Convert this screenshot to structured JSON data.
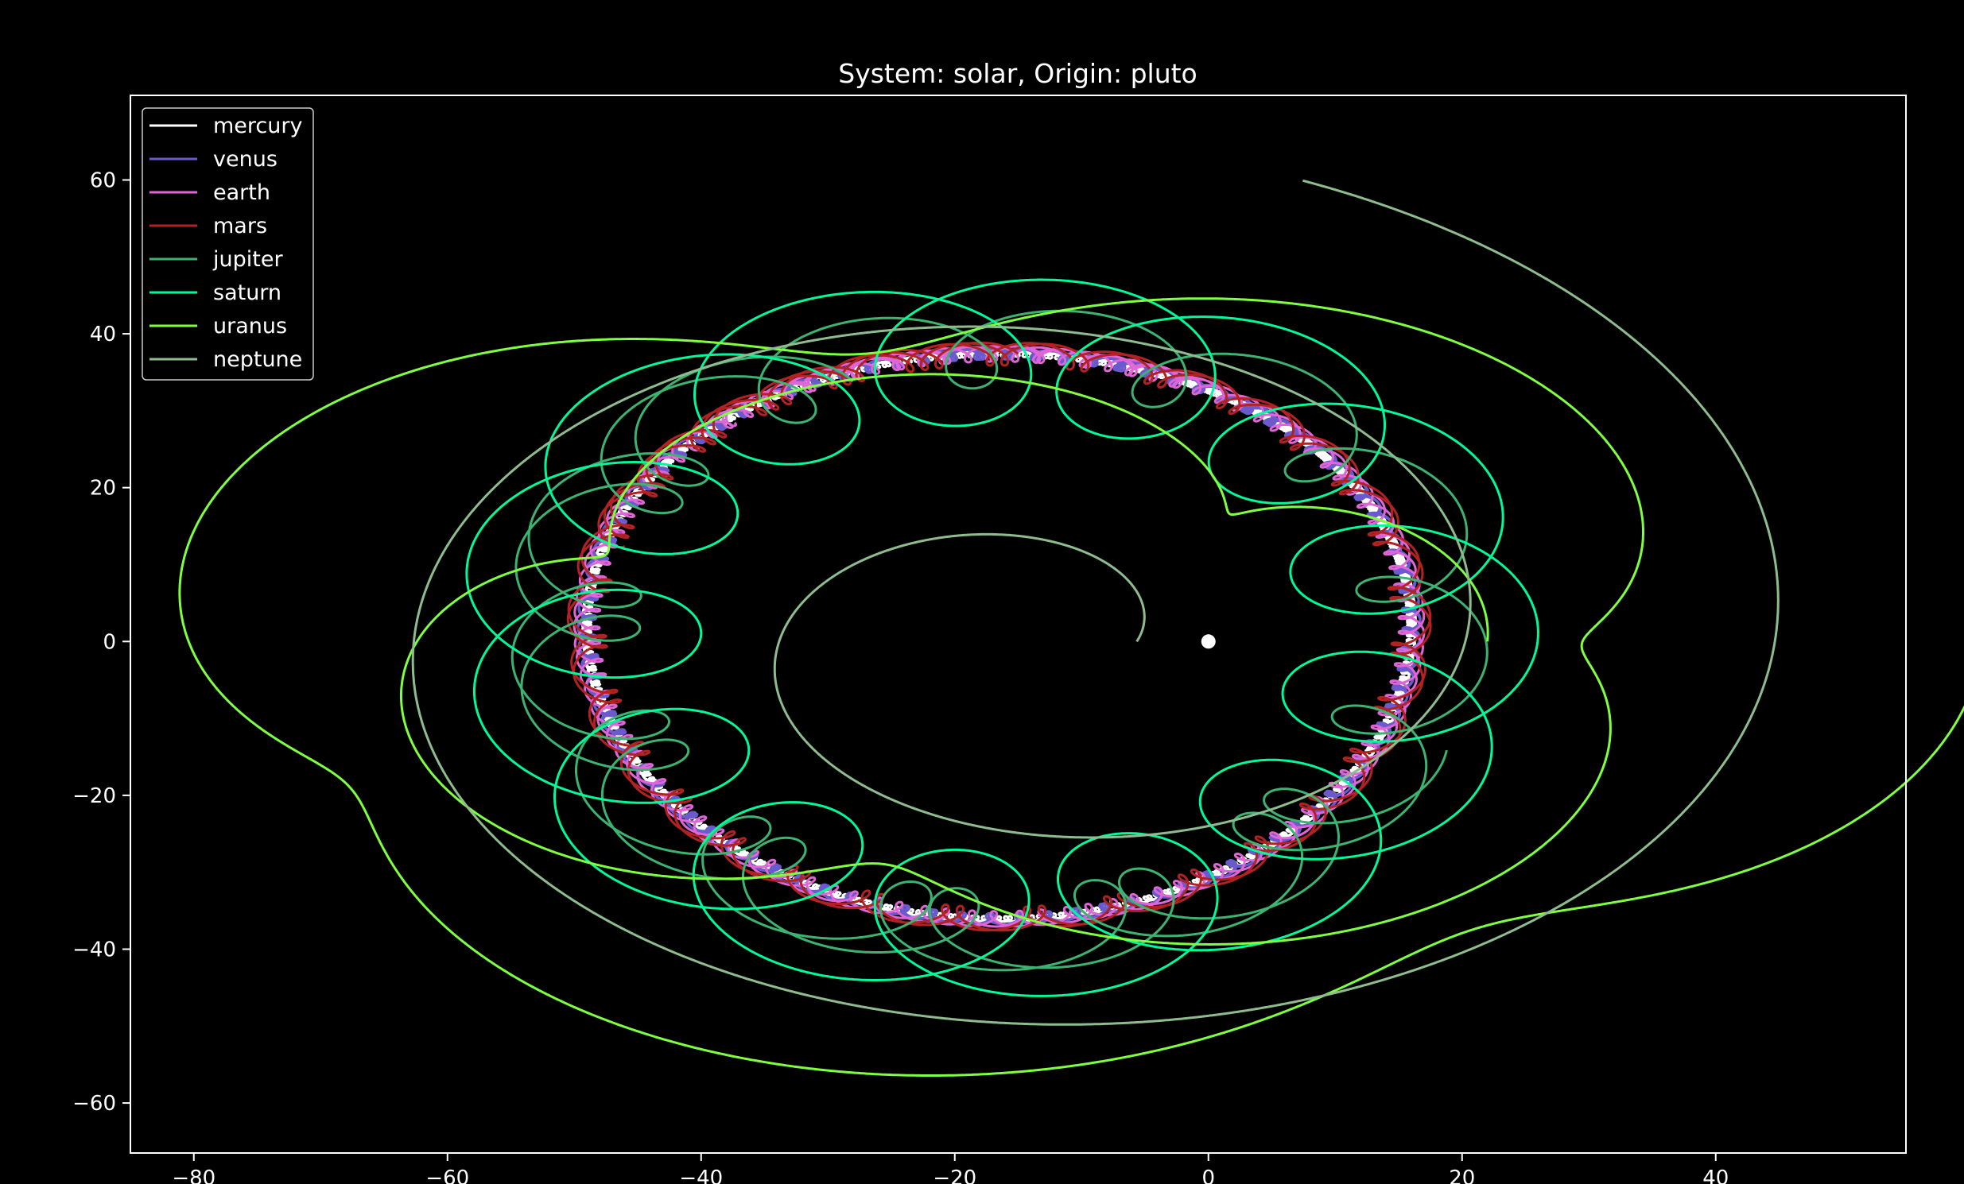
{
  "chart_data": {
    "type": "line",
    "title": "System: solar, Origin: pluto",
    "xlabel": "",
    "ylabel": "",
    "xlim": [
      -85,
      55
    ],
    "ylim": [
      -66.5,
      71
    ],
    "xticks": [
      -80,
      -60,
      -40,
      -20,
      0,
      20,
      40
    ],
    "yticks": [
      -60,
      -40,
      -20,
      0,
      20,
      40,
      60
    ],
    "x_tick_labels": [
      "−80",
      "−60",
      "−40",
      "−20",
      "0",
      "20",
      "40"
    ],
    "y_tick_labels": [
      "−60",
      "−40",
      "−20",
      "0",
      "20",
      "40",
      "60"
    ],
    "grid": false,
    "legend_position": "top-left",
    "origin_marker": {
      "x": 0,
      "y": 0,
      "color": "#ffffff"
    },
    "series": [
      {
        "name": "mercury",
        "color": "#ffffff",
        "center": [
          -16.5,
          1
        ],
        "radius": 32.5,
        "epi_radius": 0.35,
        "epi_cycles": 520,
        "turns": 2.2,
        "start_deg": 0,
        "wobble": 0.3
      },
      {
        "name": "venus",
        "color": "#6a5acd",
        "center": [
          -16.5,
          1
        ],
        "radius": 32.5,
        "epi_radius": 0.7,
        "epi_cycles": 200,
        "turns": 2.2,
        "start_deg": 30,
        "wobble": 0.3
      },
      {
        "name": "earth",
        "color": "#e066d8",
        "center": [
          -16.5,
          1
        ],
        "radius": 32.5,
        "epi_radius": 1.0,
        "epi_cycles": 120,
        "turns": 2.2,
        "start_deg": 60,
        "wobble": 0.3
      },
      {
        "name": "mars",
        "color": "#b22222",
        "center": [
          -16.5,
          1
        ],
        "radius": 32.5,
        "epi_radius": 1.5,
        "epi_cycles": 70,
        "turns": 2.2,
        "start_deg": 90,
        "wobble": 0.3
      },
      {
        "name": "jupiter",
        "color": "#3cb371",
        "center": [
          -16.5,
          1
        ],
        "radius": 33.5,
        "epi_radius": 5.2,
        "epi_cycles": 22,
        "turns": 1.6,
        "start_deg": 120,
        "wobble": 0.6
      },
      {
        "name": "saturn",
        "color": "#00fa9a",
        "center": [
          -16.5,
          1
        ],
        "radius": 33,
        "epi_radius": 9.5,
        "epi_cycles": 14,
        "turns": 1.0,
        "start_deg": 0,
        "wobble": 0.5
      },
      {
        "name": "uranus",
        "color": "#7fff3f",
        "center": [
          -16.5,
          0
        ],
        "radius": 25,
        "r_end": 55,
        "rx_scale": 1.3,
        "epi_radius": 6,
        "epi_cycles": 9,
        "turns": 2.0,
        "start_deg": 0
      },
      {
        "name": "neptune",
        "color": "#8fbc8f",
        "center": [
          -15,
          0
        ],
        "radius": 7,
        "r_end": 63,
        "rx_scale": 1.05,
        "epi_radius": 2,
        "epi_cycles": 4,
        "turns": 2.2,
        "start_deg": 0
      }
    ]
  }
}
